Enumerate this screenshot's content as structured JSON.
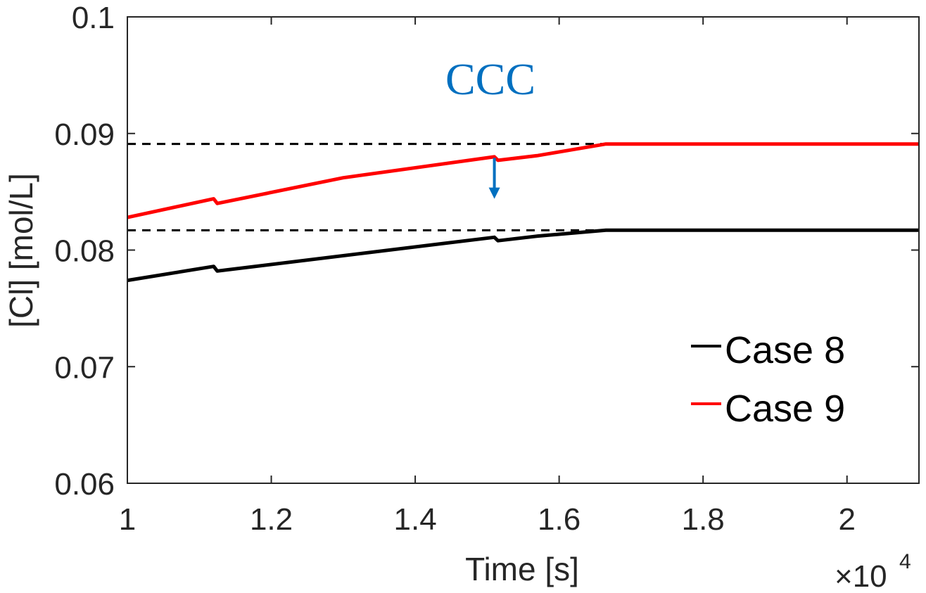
{
  "chart_data": {
    "type": "line",
    "title": "",
    "xlabel": "Time [s]",
    "ylabel": "[Cl] [mol/L]",
    "x_exponent_base": "×10",
    "x_exponent_power": "4",
    "xlim": [
      1.0,
      2.1
    ],
    "ylim": [
      0.06,
      0.1
    ],
    "x_ticks": [
      1.0,
      1.2,
      1.4,
      1.6,
      1.8,
      2.0
    ],
    "x_tick_labels": [
      "1",
      "1.2",
      "1.4",
      "1.6",
      "1.8",
      "2"
    ],
    "y_ticks": [
      0.06,
      0.07,
      0.08,
      0.09,
      0.1
    ],
    "y_tick_labels": [
      "0.06",
      "0.07",
      "0.08",
      "0.09",
      "0.1"
    ],
    "grid": false,
    "legend_position": "bottom-right",
    "series": [
      {
        "name": "Case 8",
        "color": "#000000",
        "x": [
          1.0,
          1.12,
          1.125,
          1.51,
          1.515,
          1.57,
          1.665,
          2.1
        ],
        "y": [
          0.0774,
          0.0786,
          0.0782,
          0.0811,
          0.0808,
          0.0812,
          0.0817,
          0.0817
        ]
      },
      {
        "name": "Case 9",
        "color": "#ff0000",
        "x": [
          1.0,
          1.12,
          1.125,
          1.3,
          1.51,
          1.515,
          1.57,
          1.665,
          2.1
        ],
        "y": [
          0.0828,
          0.0844,
          0.084,
          0.0862,
          0.088,
          0.0877,
          0.0881,
          0.0891,
          0.0891
        ]
      }
    ],
    "reference_lines": [
      {
        "y": 0.0891,
        "color": "#000000",
        "style": "dashed"
      },
      {
        "y": 0.0817,
        "color": "#000000",
        "style": "dashed"
      }
    ],
    "annotation": {
      "text": "CCC",
      "color": "#0070c0",
      "arrow_x": 1.51,
      "arrow_y_from": 0.0879,
      "arrow_y_to": 0.0844
    }
  }
}
